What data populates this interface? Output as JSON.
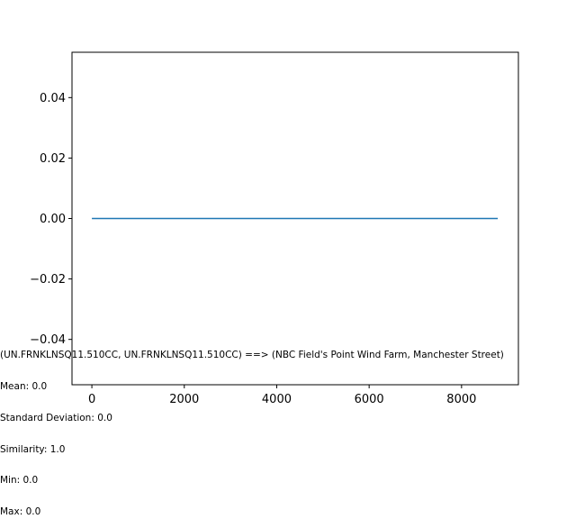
{
  "chart_data": {
    "type": "line",
    "title": "",
    "xlabel": "",
    "ylabel": "",
    "xlim": [
      -430,
      9230
    ],
    "ylim": [
      -0.055,
      0.055
    ],
    "x_ticks": [
      0,
      2000,
      4000,
      6000,
      8000
    ],
    "x_tick_labels": [
      "0",
      "2000",
      "4000",
      "6000",
      "8000"
    ],
    "y_ticks": [
      0.04,
      0.02,
      0.0,
      -0.02,
      -0.04
    ],
    "y_tick_labels": [
      "0.04",
      "0.02",
      "0.00",
      "−0.02",
      "−0.04"
    ],
    "grid": false,
    "series": [
      {
        "color": "#1f77b4",
        "x": [
          0,
          8784
        ],
        "y": [
          0.0,
          0.0
        ]
      }
    ]
  },
  "annotation": {
    "lines": [
      "(UN.FRNKLNSQ11.510CC, UN.FRNKLNSQ11.510CC) ==> (NBC Field's Point Wind Farm, Manchester Street)",
      "Mean: 0.0",
      "Standard Deviation: 0.0",
      "Similarity: 1.0",
      "Min: 0.0",
      "Max: 0.0"
    ]
  },
  "colors": {
    "series": "#1f77b4",
    "axes": "#000000",
    "background": "#ffffff"
  }
}
